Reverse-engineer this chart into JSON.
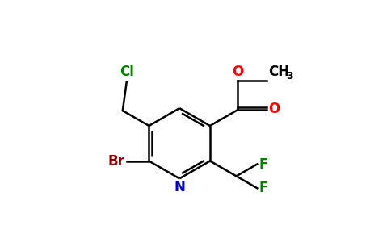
{
  "bg_color": "#ffffff",
  "atom_colors": {
    "C": "#000000",
    "N": "#0000cd",
    "O": "#ff0000",
    "F": "#008000",
    "Cl": "#008000",
    "Br": "#8b0000"
  },
  "figsize": [
    4.84,
    3.0
  ],
  "dpi": 100
}
